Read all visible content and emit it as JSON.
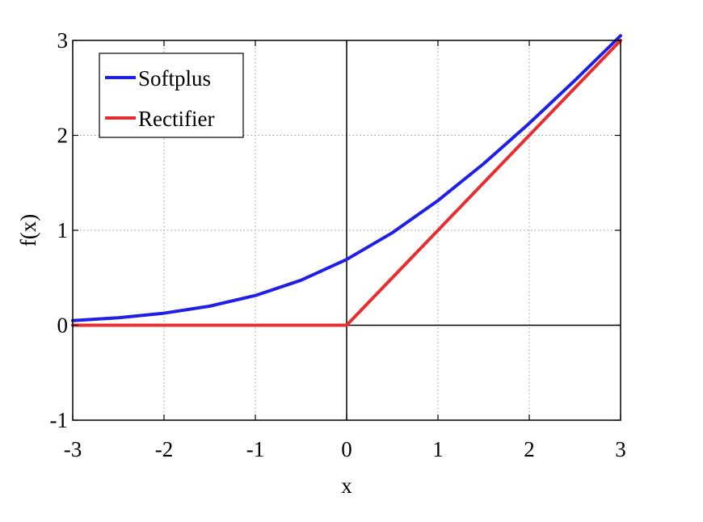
{
  "chart_data": {
    "type": "line",
    "xlabel": "x",
    "ylabel": "f(x)",
    "xlim": [
      -3,
      3
    ],
    "ylim": [
      -1,
      3
    ],
    "xticks": [
      -3,
      -2,
      -1,
      0,
      1,
      2,
      3
    ],
    "yticks": [
      -1,
      0,
      1,
      2,
      3
    ],
    "xtick_labels": [
      "-3",
      "-2",
      "-1",
      "0",
      "1",
      "2",
      "3"
    ],
    "ytick_labels": [
      "-1",
      "0",
      "1",
      "2",
      "3"
    ],
    "grid": true,
    "grid_style": "dotted",
    "legend_position": "top-left",
    "zero_axes": true,
    "series": [
      {
        "name": "Softplus",
        "color": "#1f1fe6",
        "x": [
          -3,
          -2.5,
          -2,
          -1.5,
          -1,
          -0.5,
          0,
          0.5,
          1,
          1.5,
          2,
          2.5,
          3
        ],
        "y": [
          0.049,
          0.079,
          0.127,
          0.201,
          0.313,
          0.474,
          0.693,
          0.974,
          1.313,
          1.701,
          2.127,
          2.579,
          3.049
        ]
      },
      {
        "name": "Rectifier",
        "color": "#e62e2e",
        "x": [
          -3,
          0,
          3
        ],
        "y": [
          0,
          0,
          3
        ]
      }
    ]
  }
}
